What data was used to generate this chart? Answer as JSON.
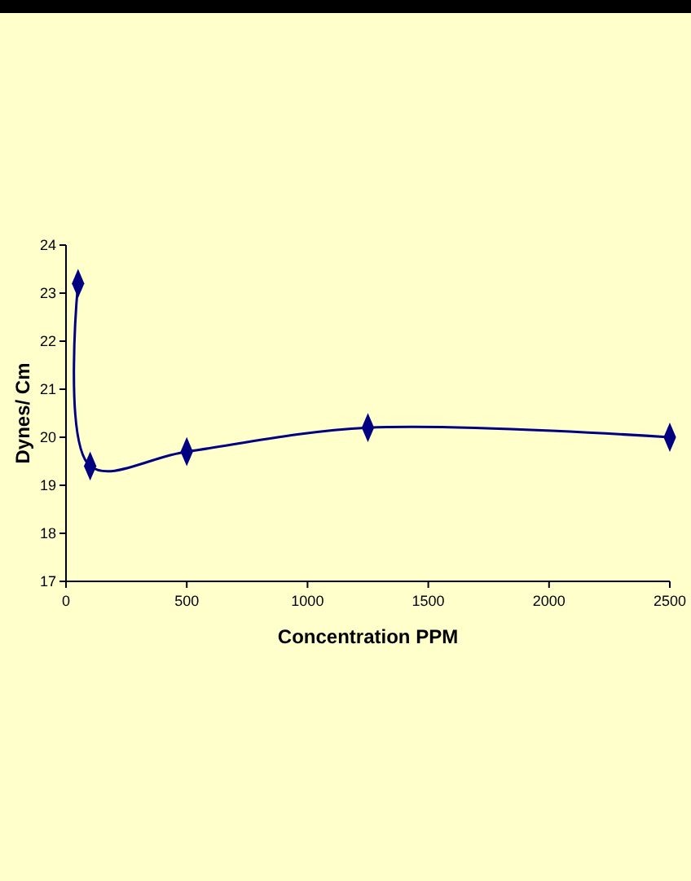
{
  "chart_data": {
    "type": "line",
    "xlabel": "Concentration PPM",
    "ylabel": "Dynes/ Cm",
    "x": [
      50,
      100,
      500,
      1250,
      2500
    ],
    "series": [
      {
        "color": "#000080",
        "values": [
          23.2,
          19.4,
          19.7,
          20.2,
          20.0
        ]
      }
    ],
    "xlim": [
      0,
      2500
    ],
    "xticks": [
      0,
      500,
      1000,
      1500,
      2000,
      2500
    ],
    "ylim": [
      17,
      24
    ],
    "yticks": [
      17,
      18,
      19,
      20,
      21,
      22,
      23,
      24
    ],
    "grid": false,
    "marker": "diamond",
    "line_style": "solid"
  }
}
